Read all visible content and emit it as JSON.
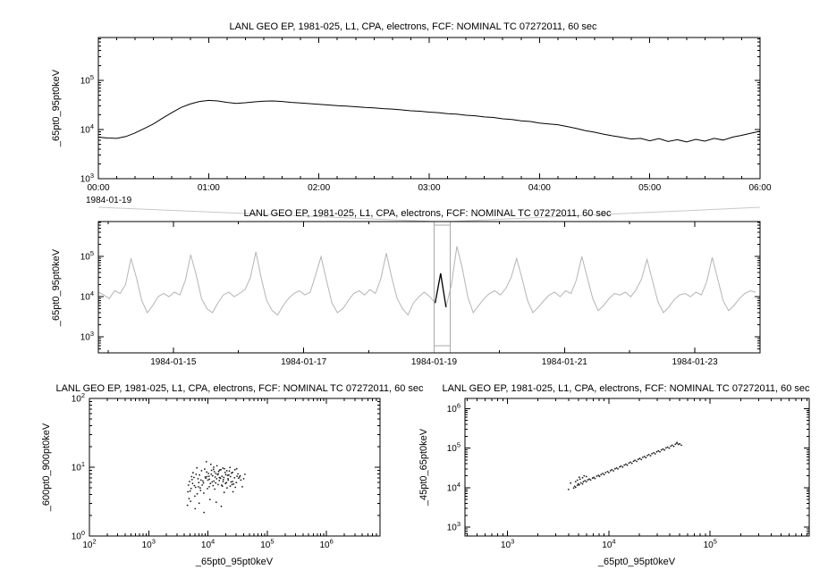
{
  "background": "#ffffff",
  "chart_data": [
    {
      "id": "zoom-timeseries",
      "type": "line",
      "title": "LANL GEO EP, 1981-025, L1, CPA, electrons, FCF: NOMINAL TC 07272011, 60 sec",
      "ylabel": "_65pt0_95pt0keV",
      "line_color": "#000000",
      "x_axis": {
        "kind": "time",
        "date_label": "1984-01-19",
        "tick_labels": [
          "00:00",
          "01:00",
          "02:00",
          "03:00",
          "04:00",
          "05:00",
          "06:00"
        ],
        "lim_minutes": [
          0,
          360
        ]
      },
      "y_axis": {
        "scale": "log",
        "lim": [
          1000,
          740000
        ],
        "tick_exponents": [
          3,
          4,
          5
        ]
      },
      "x_start_min": 0,
      "x_step_min": 5,
      "y": [
        7000,
        6700,
        6600,
        7200,
        8500,
        10500,
        13000,
        17000,
        22000,
        28000,
        33000,
        37000,
        39000,
        38000,
        35500,
        34000,
        35000,
        36500,
        37500,
        38000,
        37000,
        35500,
        34500,
        33500,
        32500,
        31500,
        30500,
        30000,
        29000,
        28000,
        27500,
        26500,
        26000,
        25000,
        24000,
        23500,
        22500,
        22000,
        21000,
        20500,
        19500,
        19000,
        18000,
        17500,
        16500,
        16000,
        15000,
        14500,
        13500,
        13000,
        12500,
        11500,
        10500,
        9500,
        8800,
        8000,
        7400,
        6900,
        6400,
        6600,
        5900,
        6500,
        5700,
        6200,
        5600,
        6300,
        5800,
        6600,
        6100,
        7000,
        7600,
        8400,
        9200
      ]
    },
    {
      "id": "context-timeseries",
      "type": "line",
      "title": "LANL GEO EP, 1981-025, L1, CPA, electrons, FCF: NOMINAL TC 07272011, 60 sec",
      "ylabel": "_65pt0_95pt0keV",
      "line_color": "#b4b4b4",
      "x_axis": {
        "kind": "date",
        "tick_labels": [
          "1984-01-15",
          "1984-01-17",
          "1984-01-19",
          "1984-01-21",
          "1984-01-23"
        ],
        "tick_days": [
          15,
          17,
          19,
          21,
          23
        ],
        "lim_days": [
          13.85,
          24.0
        ]
      },
      "y_axis": {
        "scale": "log",
        "lim": [
          400,
          740000
        ],
        "tick_exponents": [
          3,
          4,
          5
        ]
      },
      "x_start_day": 13.85,
      "x_step_day": 0.0833333,
      "highlight": {
        "range_days": [
          19.0,
          19.25
        ],
        "color": "#000000",
        "box_color": "#a8a8a8",
        "connector_color": "#c8c8c8"
      },
      "y": [
        13000,
        11000,
        9000,
        14000,
        12000,
        20000,
        90000,
        30000,
        8000,
        4000,
        6000,
        10000,
        12000,
        10000,
        13000,
        11000,
        25000,
        110000,
        35000,
        9000,
        5000,
        4000,
        7000,
        11000,
        13000,
        10000,
        12000,
        15000,
        30000,
        130000,
        28000,
        8000,
        4500,
        3500,
        6000,
        9000,
        12000,
        14000,
        11000,
        13000,
        35000,
        100000,
        25000,
        7000,
        4000,
        5000,
        8000,
        12000,
        14000,
        11000,
        15000,
        12000,
        28000,
        120000,
        30000,
        9000,
        5000,
        3500,
        7000,
        10000,
        13000,
        10000,
        7000,
        38000,
        5500,
        20000,
        180000,
        50000,
        10000,
        4000,
        6000,
        9000,
        12000,
        14000,
        11000,
        16000,
        30000,
        90000,
        28000,
        8000,
        4000,
        5500,
        8000,
        11000,
        13000,
        10000,
        14000,
        12000,
        26000,
        100000,
        30000,
        9000,
        4500,
        6000,
        9000,
        12000,
        11000,
        13000,
        10000,
        15000,
        28000,
        85000,
        25000,
        7500,
        4000,
        5500,
        8500,
        11000,
        12000,
        10000,
        13000,
        11000,
        24000,
        95000,
        28000,
        8000,
        4500,
        6000,
        9000,
        12000,
        14000,
        13000
      ]
    },
    {
      "id": "scatter-600-900",
      "type": "scatter",
      "title": "LANL GEO EP, 1981-025, L1, CPA, electrons, FCF: NOMINAL TC 07272011, 60 sec",
      "xlabel": "_65pt0_95pt0keV",
      "ylabel": "_600pt0_900pt0keV",
      "point_color": "#1a1a1a",
      "x_axis": {
        "kind": "log",
        "scale": "log",
        "lim": [
          100,
          8000000
        ],
        "tick_exponents": [
          2,
          3,
          4,
          5,
          6
        ]
      },
      "y_axis": {
        "scale": "log",
        "lim": [
          1,
          100
        ],
        "tick_exponents": [
          0,
          1,
          2
        ]
      },
      "points": [
        [
          5000,
          4.5
        ],
        [
          6200,
          5.1
        ],
        [
          7000,
          6.0
        ],
        [
          8000,
          5.5
        ],
        [
          9000,
          7.2
        ],
        [
          10000,
          6.5
        ],
        [
          11000,
          5.8
        ],
        [
          12000,
          7.5
        ],
        [
          14000,
          6.8
        ],
        [
          16000,
          7.0
        ],
        [
          18000,
          6.2
        ],
        [
          20000,
          7.8
        ],
        [
          22000,
          6.5
        ],
        [
          25000,
          8.2
        ],
        [
          28000,
          7.0
        ],
        [
          30000,
          6.0
        ],
        [
          35000,
          7.5
        ],
        [
          40000,
          6.8
        ],
        [
          8500,
          4.2
        ],
        [
          9500,
          8.5
        ],
        [
          10500,
          5.2
        ],
        [
          11500,
          9.0
        ],
        [
          13000,
          4.8
        ],
        [
          15000,
          8.0
        ],
        [
          17000,
          5.5
        ],
        [
          19000,
          9.5
        ],
        [
          21000,
          5.0
        ],
        [
          23000,
          8.8
        ],
        [
          26000,
          6.2
        ],
        [
          6000,
          3.8
        ],
        [
          6800,
          6.8
        ],
        [
          7500,
          4.6
        ],
        [
          5500,
          5.8
        ],
        [
          4800,
          3.5
        ],
        [
          12500,
          10.0
        ],
        [
          13500,
          5.9
        ],
        [
          14500,
          7.8
        ],
        [
          15500,
          6.4
        ],
        [
          16500,
          9.2
        ],
        [
          17500,
          5.3
        ],
        [
          18500,
          7.1
        ],
        [
          19500,
          8.4
        ],
        [
          20500,
          6.0
        ],
        [
          24000,
          7.3
        ],
        [
          27000,
          5.7
        ],
        [
          32000,
          8.0
        ],
        [
          36000,
          6.5
        ],
        [
          9200,
          6.9
        ],
        [
          9800,
          4.9
        ],
        [
          10200,
          8.1
        ],
        [
          11800,
          6.1
        ],
        [
          12200,
          5.4
        ],
        [
          7200,
          7.7
        ],
        [
          7800,
          8.9
        ],
        [
          8200,
          6.3
        ],
        [
          5200,
          4.9
        ],
        [
          5800,
          7.1
        ],
        [
          6500,
          9.8
        ],
        [
          30500,
          9.5
        ],
        [
          42000,
          7.9
        ],
        [
          38000,
          5.2
        ],
        [
          4500,
          2.8
        ],
        [
          5100,
          3.2
        ],
        [
          6100,
          2.5
        ],
        [
          7100,
          3.0
        ],
        [
          8600,
          2.2
        ],
        [
          10800,
          3.4
        ],
        [
          13800,
          3.1
        ],
        [
          16800,
          2.7
        ],
        [
          9400,
          12.0
        ],
        [
          11200,
          11.0
        ],
        [
          14200,
          10.5
        ],
        [
          4700,
          5.5
        ],
        [
          5400,
          6.6
        ],
        [
          23500,
          9.9
        ],
        [
          26500,
          4.4
        ],
        [
          29000,
          5.1
        ],
        [
          33000,
          6.9
        ],
        [
          21500,
          7.6
        ],
        [
          12800,
          8.6
        ],
        [
          15800,
          9.1
        ],
        [
          18800,
          4.3
        ],
        [
          10400,
          7.4
        ],
        [
          8800,
          9.4
        ],
        [
          7400,
          5.0
        ],
        [
          6600,
          4.1
        ],
        [
          5600,
          8.3
        ],
        [
          4900,
          6.2
        ],
        [
          25500,
          5.6
        ],
        [
          34000,
          7.2
        ],
        [
          10600,
          6.7
        ],
        [
          11400,
          7.9
        ],
        [
          12600,
          6.3
        ],
        [
          13200,
          7.2
        ],
        [
          14800,
          5.6
        ],
        [
          15200,
          8.7
        ],
        [
          16200,
          6.9
        ],
        [
          17200,
          7.4
        ],
        [
          18200,
          6.6
        ],
        [
          19800,
          5.8
        ],
        [
          20800,
          8.9
        ],
        [
          22500,
          7.7
        ],
        [
          24500,
          6.1
        ],
        [
          26000,
          8.4
        ],
        [
          28500,
          9.2
        ],
        [
          31000,
          7.4
        ],
        [
          9600,
          7.3
        ],
        [
          8400,
          5.9
        ],
        [
          7600,
          6.5
        ],
        [
          6900,
          5.2
        ],
        [
          6300,
          7.9
        ],
        [
          5900,
          5.4
        ],
        [
          5300,
          7.3
        ],
        [
          4600,
          4.4
        ],
        [
          12400,
          9.3
        ],
        [
          13600,
          8.1
        ],
        [
          15600,
          7.1
        ],
        [
          17800,
          9.7
        ],
        [
          21800,
          6.8
        ],
        [
          23800,
          5.3
        ]
      ]
    },
    {
      "id": "scatter-45-65",
      "type": "scatter",
      "title": "LANL GEO EP, 1981-025, L1, CPA, electrons, FCF: NOMINAL TC 07272011, 60 sec",
      "xlabel": "_65pt0_95pt0keV",
      "ylabel": "_45pt0_65pt0keV",
      "point_color": "#1a1a1a",
      "x_axis": {
        "kind": "log",
        "scale": "log",
        "lim": [
          380,
          950000
        ],
        "tick_exponents": [
          3,
          4,
          5
        ]
      },
      "y_axis": {
        "scale": "log",
        "lim": [
          600,
          1800000
        ],
        "tick_exponents": [
          3,
          4,
          5,
          6
        ]
      },
      "points": [
        [
          4500,
          9800
        ],
        [
          4600,
          10800
        ],
        [
          4700,
          10200
        ],
        [
          4900,
          11500
        ],
        [
          5000,
          12500
        ],
        [
          5100,
          11800
        ],
        [
          5300,
          13200
        ],
        [
          5500,
          12400
        ],
        [
          5600,
          14100
        ],
        [
          5800,
          15000
        ],
        [
          6000,
          14200
        ],
        [
          6200,
          15800
        ],
        [
          6400,
          16500
        ],
        [
          6600,
          15600
        ],
        [
          6900,
          17400
        ],
        [
          7100,
          18200
        ],
        [
          7300,
          17100
        ],
        [
          7600,
          19500
        ],
        [
          7900,
          20400
        ],
        [
          8100,
          19200
        ],
        [
          8400,
          21500
        ],
        [
          8700,
          22800
        ],
        [
          9000,
          21400
        ],
        [
          9300,
          24000
        ],
        [
          9700,
          25500
        ],
        [
          10000,
          24000
        ],
        [
          10400,
          26900
        ],
        [
          10700,
          28400
        ],
        [
          11100,
          26700
        ],
        [
          11500,
          30000
        ],
        [
          11900,
          31600
        ],
        [
          12300,
          29800
        ],
        [
          12800,
          33500
        ],
        [
          13200,
          35200
        ],
        [
          13700,
          33100
        ],
        [
          14200,
          37300
        ],
        [
          14700,
          39300
        ],
        [
          15200,
          37000
        ],
        [
          15800,
          41700
        ],
        [
          16300,
          43900
        ],
        [
          16900,
          41300
        ],
        [
          17500,
          46600
        ],
        [
          18100,
          49000
        ],
        [
          18800,
          46200
        ],
        [
          19500,
          52000
        ],
        [
          20200,
          54700
        ],
        [
          20900,
          51500
        ],
        [
          21600,
          58100
        ],
        [
          22400,
          61200
        ],
        [
          23200,
          57600
        ],
        [
          24000,
          64900
        ],
        [
          24900,
          68300
        ],
        [
          25800,
          64300
        ],
        [
          26700,
          72400
        ],
        [
          27700,
          76200
        ],
        [
          28700,
          71800
        ],
        [
          29700,
          80800
        ],
        [
          30800,
          85100
        ],
        [
          31900,
          80200
        ],
        [
          33000,
          90200
        ],
        [
          34200,
          95000
        ],
        [
          35400,
          89500
        ],
        [
          36700,
          101000
        ],
        [
          38000,
          106000
        ],
        [
          39400,
          99800
        ],
        [
          40800,
          112000
        ],
        [
          42200,
          118000
        ],
        [
          43700,
          111000
        ],
        [
          45300,
          125000
        ],
        [
          46900,
          132000
        ],
        [
          48600,
          124000
        ],
        [
          5200,
          16500
        ],
        [
          4900,
          15500
        ],
        [
          4700,
          14200
        ],
        [
          5500,
          17800
        ],
        [
          6000,
          19000
        ],
        [
          5700,
          20000
        ],
        [
          5100,
          18500
        ],
        [
          47000,
          138000
        ],
        [
          50000,
          128000
        ],
        [
          52000,
          118000
        ],
        [
          4200,
          13000
        ],
        [
          4000,
          9000
        ]
      ]
    }
  ]
}
